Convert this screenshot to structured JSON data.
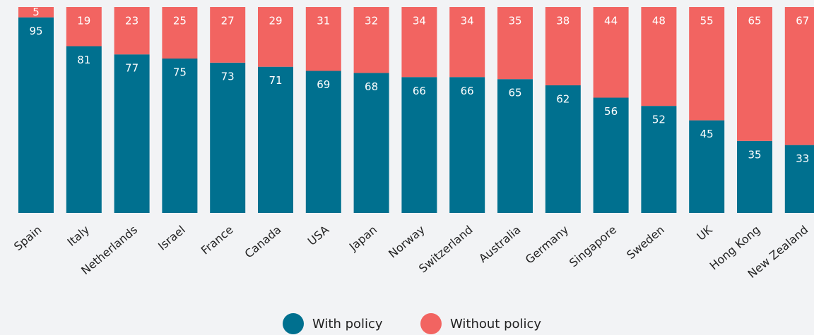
{
  "chart_data": {
    "type": "stacked_bar",
    "categories": [
      "Spain",
      "Italy",
      "Netherlands",
      "Israel",
      "France",
      "Canada",
      "USA",
      "Japan",
      "Norway",
      "Switzerland",
      "Australia",
      "Germany",
      "Singapore",
      "Sweden",
      "UK",
      "Hong Kong",
      "New Zealand"
    ],
    "series": [
      {
        "name": "With policy",
        "color": "#00708f",
        "values": [
          95,
          81,
          77,
          75,
          73,
          71,
          69,
          68,
          66,
          66,
          65,
          62,
          56,
          52,
          45,
          35,
          33
        ]
      },
      {
        "name": "Without policy",
        "color": "#f26461",
        "values": [
          5,
          19,
          23,
          25,
          27,
          29,
          31,
          32,
          34,
          34,
          35,
          38,
          44,
          48,
          55,
          65,
          67
        ]
      }
    ],
    "ylim": [
      0,
      100
    ]
  }
}
